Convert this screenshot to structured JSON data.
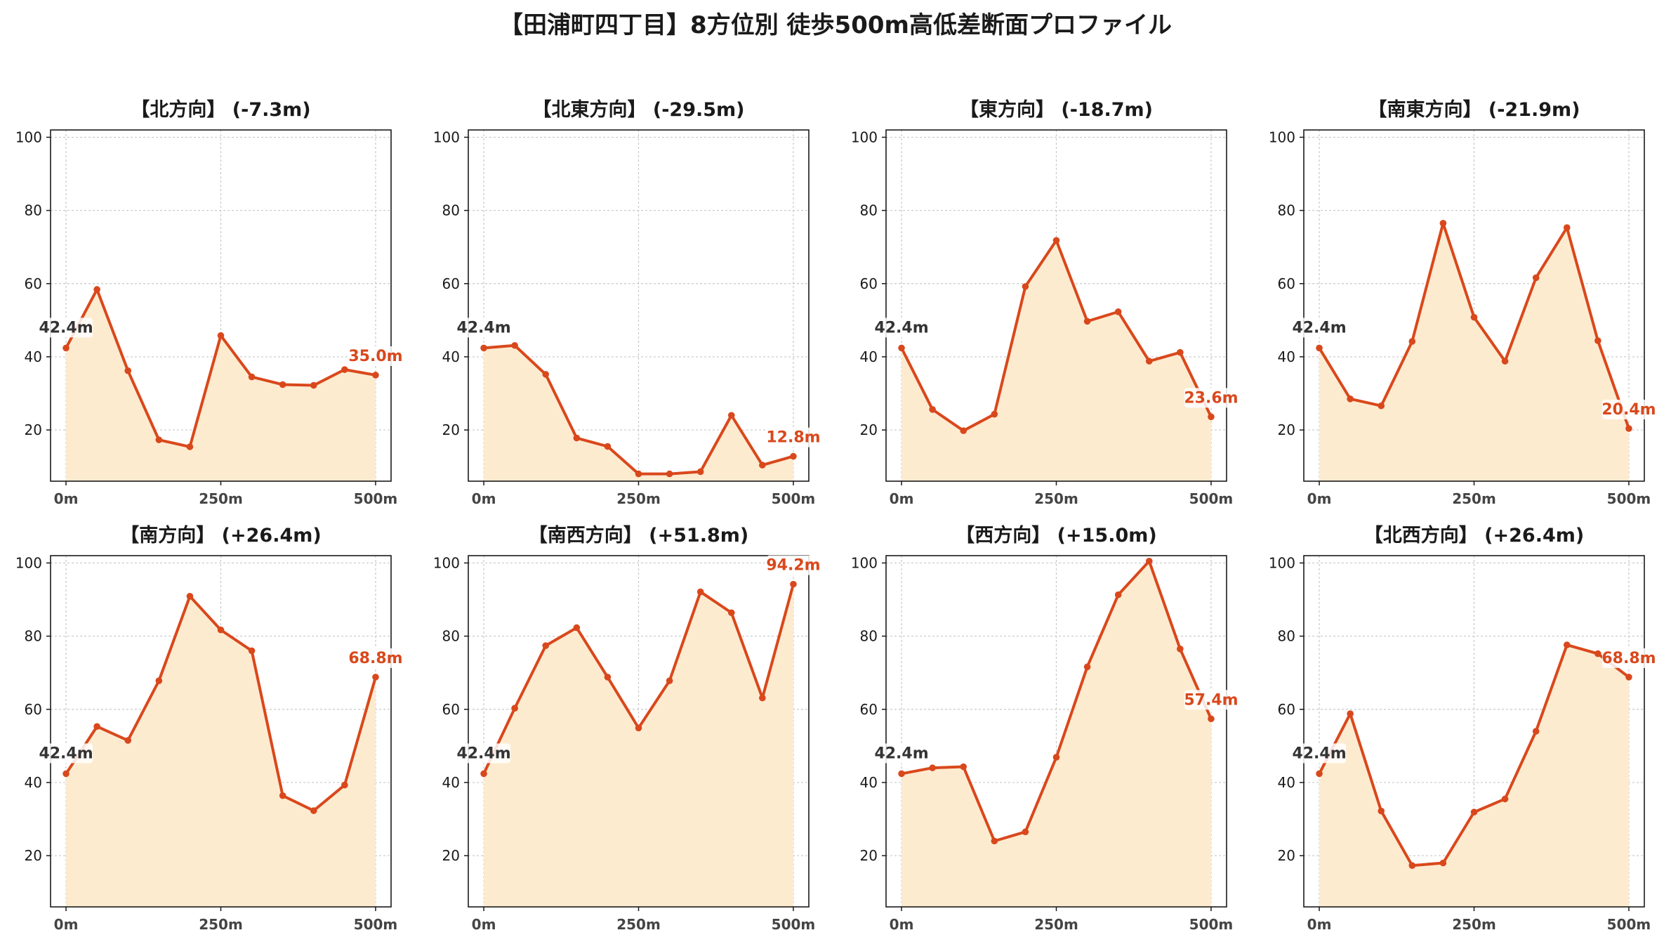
{
  "figure": {
    "suptitle": "【田浦町四丁目】8方位別 徒歩500m高低差断面プロファイル",
    "colors": {
      "line": "#d9481c",
      "fill": "#fdebd0",
      "grid": "#c8c8c8",
      "start_label": "#333333",
      "end_label": "#d9481c"
    }
  },
  "chart_data": [
    {
      "type": "area",
      "title": "【北方向】 (-7.3m)",
      "x": [
        0,
        50,
        100,
        150,
        200,
        250,
        300,
        350,
        400,
        450,
        500
      ],
      "y": [
        42.4,
        58.4,
        36.2,
        17.3,
        15.4,
        45.8,
        34.5,
        32.4,
        32.2,
        36.5,
        35.0
      ],
      "xticks": [
        "0m",
        "250m",
        "500m"
      ],
      "yticks": [
        20,
        40,
        60,
        80,
        100
      ],
      "ylim": [
        6,
        102
      ],
      "xlim": [
        -25,
        525
      ],
      "start_label": "42.4m",
      "end_label": "35.0m",
      "grid": true
    },
    {
      "type": "area",
      "title": "【北東方向】 (-29.5m)",
      "x": [
        0,
        50,
        100,
        150,
        200,
        250,
        300,
        350,
        400,
        450,
        500
      ],
      "y": [
        42.4,
        43.1,
        35.2,
        17.8,
        15.5,
        8.0,
        8.0,
        8.6,
        24.0,
        10.4,
        12.8
      ],
      "xticks": [
        "0m",
        "250m",
        "500m"
      ],
      "yticks": [
        20,
        40,
        60,
        80,
        100
      ],
      "ylim": [
        6,
        102
      ],
      "xlim": [
        -25,
        525
      ],
      "start_label": "42.4m",
      "end_label": "12.8m",
      "grid": true
    },
    {
      "type": "area",
      "title": "【東方向】 (-18.7m)",
      "x": [
        0,
        50,
        100,
        150,
        200,
        250,
        300,
        350,
        400,
        450,
        500
      ],
      "y": [
        42.4,
        25.6,
        19.8,
        24.3,
        59.2,
        71.8,
        49.7,
        52.3,
        38.8,
        41.2,
        23.6
      ],
      "xticks": [
        "0m",
        "250m",
        "500m"
      ],
      "yticks": [
        20,
        40,
        60,
        80,
        100
      ],
      "ylim": [
        6,
        102
      ],
      "xlim": [
        -25,
        525
      ],
      "start_label": "42.4m",
      "end_label": "23.6m",
      "grid": true
    },
    {
      "type": "area",
      "title": "【南東方向】 (-21.9m)",
      "x": [
        0,
        50,
        100,
        150,
        200,
        250,
        300,
        350,
        400,
        450,
        500
      ],
      "y": [
        42.4,
        28.5,
        26.6,
        44.2,
        76.5,
        50.8,
        38.8,
        61.6,
        75.3,
        44.4,
        20.4
      ],
      "xticks": [
        "0m",
        "250m",
        "500m"
      ],
      "yticks": [
        20,
        40,
        60,
        80,
        100
      ],
      "ylim": [
        6,
        102
      ],
      "xlim": [
        -25,
        525
      ],
      "start_label": "42.4m",
      "end_label": "20.4m",
      "grid": true
    },
    {
      "type": "area",
      "title": "【南方向】 (+26.4m)",
      "x": [
        0,
        50,
        100,
        150,
        200,
        250,
        300,
        350,
        400,
        450,
        500
      ],
      "y": [
        42.4,
        55.3,
        51.5,
        67.8,
        90.9,
        81.7,
        76.0,
        36.4,
        32.3,
        39.3,
        68.8
      ],
      "xticks": [
        "0m",
        "250m",
        "500m"
      ],
      "yticks": [
        20,
        40,
        60,
        80,
        100
      ],
      "ylim": [
        6,
        102
      ],
      "xlim": [
        -25,
        525
      ],
      "start_label": "42.4m",
      "end_label": "68.8m",
      "grid": true
    },
    {
      "type": "area",
      "title": "【南西方向】 (+51.8m)",
      "x": [
        0,
        50,
        100,
        150,
        200,
        250,
        300,
        350,
        400,
        450,
        500
      ],
      "y": [
        42.4,
        60.3,
        77.4,
        82.3,
        68.8,
        54.9,
        67.8,
        92.1,
        86.4,
        63.1,
        94.2
      ],
      "xticks": [
        "0m",
        "250m",
        "500m"
      ],
      "yticks": [
        20,
        40,
        60,
        80,
        100
      ],
      "ylim": [
        6,
        102
      ],
      "xlim": [
        -25,
        525
      ],
      "start_label": "42.4m",
      "end_label": "94.2m",
      "grid": true
    },
    {
      "type": "area",
      "title": "【西方向】 (+15.0m)",
      "x": [
        0,
        50,
        100,
        150,
        200,
        250,
        300,
        350,
        400,
        450,
        500
      ],
      "y": [
        42.4,
        44.0,
        44.3,
        24.0,
        26.5,
        46.9,
        71.6,
        91.3,
        100.5,
        76.5,
        57.4
      ],
      "xticks": [
        "0m",
        "250m",
        "500m"
      ],
      "yticks": [
        20,
        40,
        60,
        80,
        100
      ],
      "ylim": [
        6,
        102
      ],
      "xlim": [
        -25,
        525
      ],
      "start_label": "42.4m",
      "end_label": "57.4m",
      "grid": true
    },
    {
      "type": "area",
      "title": "【北西方向】 (+26.4m)",
      "x": [
        0,
        50,
        100,
        150,
        200,
        250,
        300,
        350,
        400,
        450,
        500
      ],
      "y": [
        42.4,
        58.8,
        32.2,
        17.3,
        18.0,
        31.9,
        35.5,
        54.0,
        77.6,
        75.2,
        68.8
      ],
      "xticks": [
        "0m",
        "250m",
        "500m"
      ],
      "yticks": [
        20,
        40,
        60,
        80,
        100
      ],
      "ylim": [
        6,
        102
      ],
      "xlim": [
        -25,
        525
      ],
      "start_label": "42.4m",
      "end_label": "68.8m",
      "grid": true
    }
  ]
}
